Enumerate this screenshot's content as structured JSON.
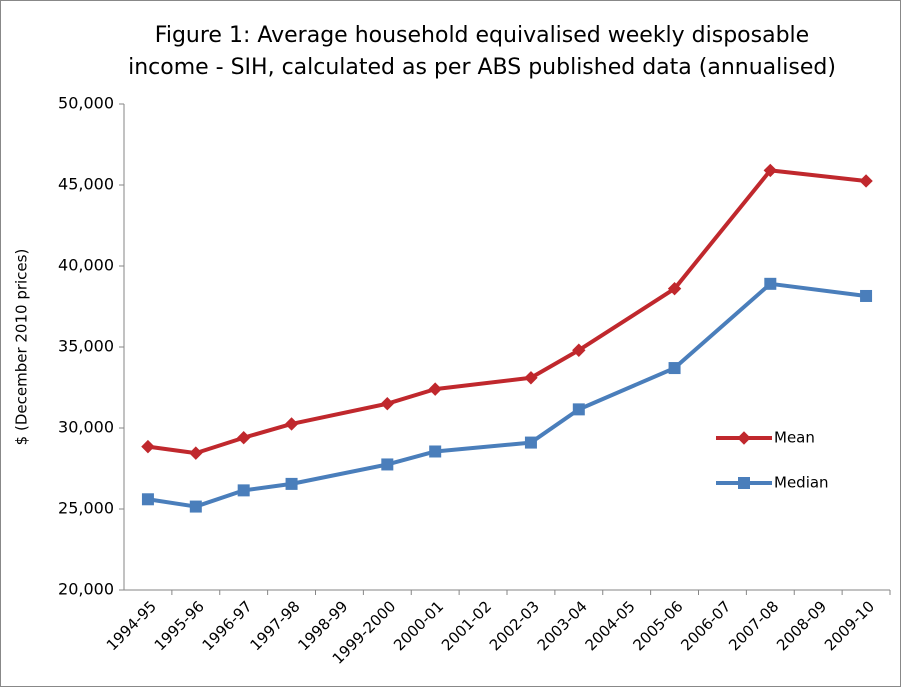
{
  "chart_data": {
    "type": "line",
    "title": "Figure 1: Average household equivalised weekly disposable income - SIH, calculated as per ABS published data (annualised)",
    "y_label": "$ (December 2010 prices)",
    "categories": [
      "1994-95",
      "1995-96",
      "1996-97",
      "1997-98",
      "1998-99",
      "1999-2000",
      "2000-01",
      "2001-02",
      "2002-03",
      "2003-04",
      "2004-05",
      "2005-06",
      "2006-07",
      "2007-08",
      "2008-09",
      "2009-10"
    ],
    "series": [
      {
        "name": "Mean",
        "color": "#c0282d",
        "marker": "diamond",
        "values": [
          28850,
          28450,
          29400,
          30250,
          null,
          31500,
          32400,
          null,
          33100,
          34800,
          null,
          38600,
          null,
          45900,
          null,
          45250
        ]
      },
      {
        "name": "Median",
        "color": "#4a7ebb",
        "marker": "square",
        "values": [
          25600,
          25150,
          26150,
          26550,
          null,
          27750,
          28550,
          null,
          29100,
          31150,
          null,
          33700,
          null,
          38900,
          null,
          38150
        ]
      }
    ],
    "connect_gaps": true,
    "ylim": [
      20000,
      50000
    ],
    "yticks": [
      {
        "value": 20000,
        "label": "20,000"
      },
      {
        "value": 25000,
        "label": "25,000"
      },
      {
        "value": 30000,
        "label": "30,000"
      },
      {
        "value": 35000,
        "label": "35,000"
      },
      {
        "value": 40000,
        "label": "40,000"
      },
      {
        "value": 45000,
        "label": "45,000"
      },
      {
        "value": 50000,
        "label": "50,000"
      }
    ],
    "grid": false,
    "legend": "right"
  }
}
